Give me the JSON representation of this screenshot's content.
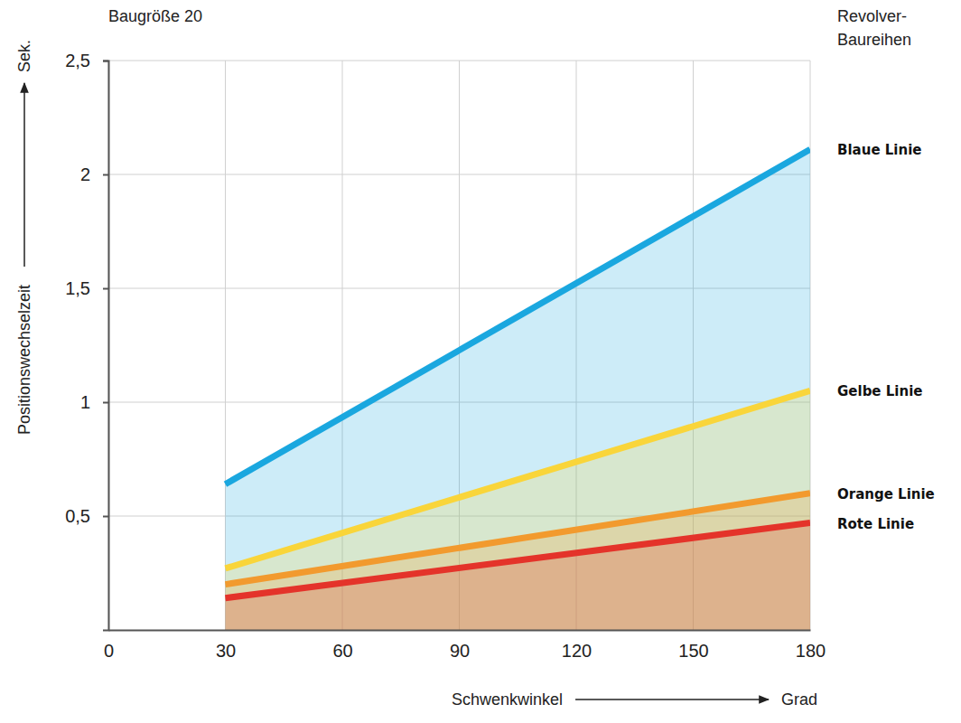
{
  "chart_data": {
    "type": "line",
    "title": "Baugröße 20",
    "xlabel": "Schwenkwinkel",
    "xunit": "Grad",
    "ylabel": "Positionswechselzeit",
    "yunit": "Sek.",
    "legend_title": "Revolver-Baureihen",
    "legend": "right",
    "grid": true,
    "x": [
      30,
      180
    ],
    "xlim": [
      0,
      180
    ],
    "xticks": [
      0,
      30,
      60,
      90,
      120,
      150,
      180
    ],
    "ylim": [
      0,
      2.5
    ],
    "yticks": [
      {
        "value": 0.5,
        "label": "0,5"
      },
      1,
      {
        "value": 1.5,
        "label": "1,5"
      },
      2,
      {
        "value": 2.5,
        "label": "2,5"
      }
    ],
    "series": [
      {
        "name": "Blaue Linie",
        "color": "#1aa7df",
        "values": [
          0.64,
          2.11
        ]
      },
      {
        "name": "Gelbe Linie",
        "color": "#f9d53a",
        "values": [
          0.27,
          1.05
        ]
      },
      {
        "name": "Orange Linie",
        "color": "#f29a2e",
        "values": [
          0.2,
          0.6
        ]
      },
      {
        "name": "Rote Linie",
        "color": "#e4332a",
        "values": [
          0.14,
          0.47
        ]
      }
    ]
  }
}
